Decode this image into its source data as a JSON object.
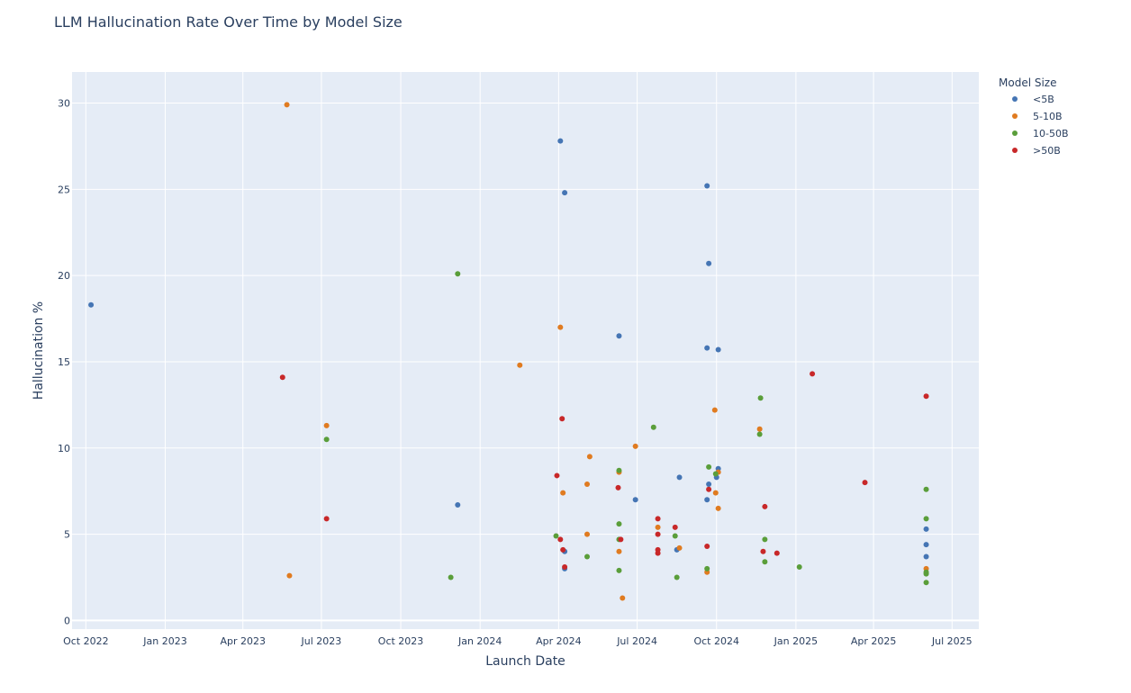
{
  "chart_data": {
    "type": "scatter",
    "title": "LLM Hallucination Rate Over Time by Model Size",
    "xlabel": "Launch Date",
    "ylabel": "Hallucination %",
    "xlim": [
      "2022-09-15",
      "2025-08-01"
    ],
    "ylim": [
      -0.5,
      31.8
    ],
    "xticks": [
      {
        "date": "2022-10-01",
        "label": "Oct 2022"
      },
      {
        "date": "2023-01-01",
        "label": "Jan 2023"
      },
      {
        "date": "2023-04-01",
        "label": "Apr 2023"
      },
      {
        "date": "2023-07-01",
        "label": "Jul 2023"
      },
      {
        "date": "2023-10-01",
        "label": "Oct 2023"
      },
      {
        "date": "2024-01-01",
        "label": "Jan 2024"
      },
      {
        "date": "2024-04-01",
        "label": "Apr 2024"
      },
      {
        "date": "2024-07-01",
        "label": "Jul 2024"
      },
      {
        "date": "2024-10-01",
        "label": "Oct 2024"
      },
      {
        "date": "2025-01-01",
        "label": "Jan 2025"
      },
      {
        "date": "2025-04-01",
        "label": "Apr 2025"
      },
      {
        "date": "2025-07-01",
        "label": "Jul 2025"
      }
    ],
    "yticks": [
      0,
      5,
      10,
      15,
      20,
      25,
      30
    ],
    "grid": true,
    "legend": {
      "title": "Model Size",
      "position": "right"
    },
    "series": [
      {
        "name": "<5B",
        "color": "#4575b4",
        "points": [
          {
            "x": "2022-10-07",
            "y": 18.3
          },
          {
            "x": "2023-12-06",
            "y": 6.7
          },
          {
            "x": "2024-04-03",
            "y": 27.8
          },
          {
            "x": "2024-04-08",
            "y": 24.8
          },
          {
            "x": "2024-04-08",
            "y": 4.0
          },
          {
            "x": "2024-04-08",
            "y": 3.0
          },
          {
            "x": "2024-06-10",
            "y": 16.5
          },
          {
            "x": "2024-06-29",
            "y": 7.0
          },
          {
            "x": "2024-08-16",
            "y": 4.1
          },
          {
            "x": "2024-08-19",
            "y": 8.3
          },
          {
            "x": "2024-09-20",
            "y": 25.2
          },
          {
            "x": "2024-09-20",
            "y": 15.8
          },
          {
            "x": "2024-09-20",
            "y": 7.0
          },
          {
            "x": "2024-09-22",
            "y": 20.7
          },
          {
            "x": "2024-09-22",
            "y": 7.9
          },
          {
            "x": "2024-10-01",
            "y": 8.3
          },
          {
            "x": "2024-10-03",
            "y": 15.7
          },
          {
            "x": "2024-10-03",
            "y": 8.8
          },
          {
            "x": "2025-06-01",
            "y": 5.3
          },
          {
            "x": "2025-06-01",
            "y": 4.4
          },
          {
            "x": "2025-06-01",
            "y": 3.7
          }
        ]
      },
      {
        "name": "5-10B",
        "color": "#e07b20",
        "points": [
          {
            "x": "2023-05-22",
            "y": 29.9
          },
          {
            "x": "2023-05-25",
            "y": 2.6
          },
          {
            "x": "2023-07-07",
            "y": 11.3
          },
          {
            "x": "2024-02-16",
            "y": 14.8
          },
          {
            "x": "2024-04-03",
            "y": 17.0
          },
          {
            "x": "2024-04-06",
            "y": 7.4
          },
          {
            "x": "2024-05-04",
            "y": 7.9
          },
          {
            "x": "2024-05-04",
            "y": 5.0
          },
          {
            "x": "2024-05-07",
            "y": 9.5
          },
          {
            "x": "2024-06-10",
            "y": 8.6
          },
          {
            "x": "2024-06-10",
            "y": 4.0
          },
          {
            "x": "2024-06-14",
            "y": 1.3
          },
          {
            "x": "2024-06-29",
            "y": 10.1
          },
          {
            "x": "2024-07-25",
            "y": 5.4
          },
          {
            "x": "2024-08-19",
            "y": 4.2
          },
          {
            "x": "2024-09-20",
            "y": 2.8
          },
          {
            "x": "2024-09-29",
            "y": 12.2
          },
          {
            "x": "2024-09-30",
            "y": 7.4
          },
          {
            "x": "2024-10-03",
            "y": 8.6
          },
          {
            "x": "2024-10-03",
            "y": 6.5
          },
          {
            "x": "2024-11-20",
            "y": 11.1
          },
          {
            "x": "2025-06-01",
            "y": 3.0
          }
        ]
      },
      {
        "name": "10-50B",
        "color": "#5a9e3a",
        "points": [
          {
            "x": "2023-07-07",
            "y": 10.5
          },
          {
            "x": "2023-11-28",
            "y": 2.5
          },
          {
            "x": "2023-12-06",
            "y": 20.1
          },
          {
            "x": "2024-03-29",
            "y": 4.9
          },
          {
            "x": "2024-05-04",
            "y": 3.7
          },
          {
            "x": "2024-06-10",
            "y": 8.7
          },
          {
            "x": "2024-06-10",
            "y": 5.6
          },
          {
            "x": "2024-06-10",
            "y": 4.7
          },
          {
            "x": "2024-06-10",
            "y": 2.9
          },
          {
            "x": "2024-07-20",
            "y": 11.2
          },
          {
            "x": "2024-08-14",
            "y": 4.9
          },
          {
            "x": "2024-08-16",
            "y": 2.5
          },
          {
            "x": "2024-09-20",
            "y": 3.0
          },
          {
            "x": "2024-09-22",
            "y": 8.9
          },
          {
            "x": "2024-09-30",
            "y": 8.5
          },
          {
            "x": "2024-11-20",
            "y": 10.8
          },
          {
            "x": "2024-11-21",
            "y": 12.9
          },
          {
            "x": "2024-11-26",
            "y": 4.7
          },
          {
            "x": "2024-11-26",
            "y": 3.4
          },
          {
            "x": "2025-01-05",
            "y": 3.1
          },
          {
            "x": "2025-06-01",
            "y": 7.6
          },
          {
            "x": "2025-06-01",
            "y": 5.9
          },
          {
            "x": "2025-06-01",
            "y": 2.8
          },
          {
            "x": "2025-06-01",
            "y": 2.7
          },
          {
            "x": "2025-06-01",
            "y": 2.2
          }
        ]
      },
      {
        "name": ">50B",
        "color": "#c82829",
        "points": [
          {
            "x": "2023-05-17",
            "y": 14.1
          },
          {
            "x": "2023-07-07",
            "y": 5.9
          },
          {
            "x": "2024-03-30",
            "y": 8.4
          },
          {
            "x": "2024-04-03",
            "y": 4.7
          },
          {
            "x": "2024-04-05",
            "y": 11.7
          },
          {
            "x": "2024-04-06",
            "y": 4.1
          },
          {
            "x": "2024-04-08",
            "y": 3.1
          },
          {
            "x": "2024-06-09",
            "y": 7.7
          },
          {
            "x": "2024-06-12",
            "y": 4.7
          },
          {
            "x": "2024-07-25",
            "y": 5.9
          },
          {
            "x": "2024-07-25",
            "y": 5.0
          },
          {
            "x": "2024-07-25",
            "y": 4.1
          },
          {
            "x": "2024-07-25",
            "y": 3.9
          },
          {
            "x": "2024-08-14",
            "y": 5.4
          },
          {
            "x": "2024-09-20",
            "y": 4.3
          },
          {
            "x": "2024-09-22",
            "y": 7.6
          },
          {
            "x": "2024-11-24",
            "y": 4.0
          },
          {
            "x": "2024-11-26",
            "y": 6.6
          },
          {
            "x": "2024-12-10",
            "y": 3.9
          },
          {
            "x": "2025-01-20",
            "y": 14.3
          },
          {
            "x": "2025-03-22",
            "y": 8.0
          },
          {
            "x": "2025-06-01",
            "y": 13.0
          }
        ]
      }
    ]
  }
}
